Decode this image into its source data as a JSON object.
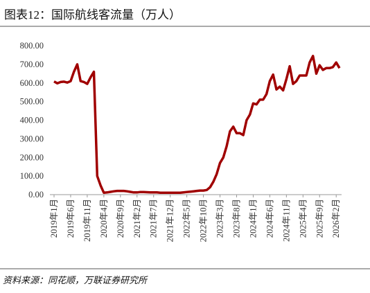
{
  "chart_data": {
    "type": "line",
    "title": "图表12：国际航线客流量（万人）",
    "source": "资料来源：同花顺，万联证券研究所",
    "color": "#a00000",
    "categories": [
      "2019年1月",
      null,
      null,
      null,
      null,
      "2019年6月",
      null,
      null,
      null,
      null,
      "2019年11月",
      null,
      null,
      null,
      null,
      "2020年4月",
      null,
      null,
      null,
      null,
      "2020年9月",
      null,
      null,
      null,
      null,
      "2021年2月",
      null,
      null,
      null,
      null,
      "2021年7月",
      null,
      null,
      null,
      null,
      "2021年12月",
      null,
      null,
      null,
      null,
      "2022年5月",
      null,
      null,
      null,
      null,
      "2022年10月",
      null,
      null,
      null,
      null,
      "2023年3月",
      null,
      null,
      null,
      null,
      "2023年8月",
      null,
      null,
      null,
      null,
      "2024年1月",
      null,
      null,
      null,
      null,
      "2024年6月",
      null,
      null,
      null,
      null,
      "2024年11月",
      null,
      null,
      null,
      null,
      "2025年4月",
      null,
      null,
      null,
      null,
      "2025年9月",
      null,
      null,
      null,
      null,
      "2026年2月",
      null
    ],
    "values": [
      608,
      598,
      605,
      607,
      602,
      610,
      660,
      700,
      610,
      605,
      595,
      630,
      660,
      100,
      50,
      10,
      12,
      15,
      18,
      20,
      20,
      20,
      18,
      15,
      12,
      12,
      14,
      14,
      13,
      12,
      12,
      12,
      10,
      10,
      10,
      10,
      10,
      10,
      10,
      12,
      14,
      16,
      18,
      20,
      22,
      22,
      25,
      40,
      70,
      110,
      170,
      200,
      260,
      340,
      365,
      330,
      330,
      320,
      400,
      430,
      490,
      485,
      510,
      510,
      540,
      610,
      645,
      565,
      580,
      560,
      620,
      690,
      595,
      610,
      640,
      640,
      640,
      710,
      745,
      650,
      695,
      670,
      680,
      680,
      685,
      710,
      680
    ],
    "ylim": [
      0,
      800
    ],
    "yticks": [
      {
        "value": 0,
        "label": "0.00"
      },
      {
        "value": 100,
        "label": "100.00"
      },
      {
        "value": 200,
        "label": "200.00"
      },
      {
        "value": 300,
        "label": "300.00"
      },
      {
        "value": 400,
        "label": "400.00"
      },
      {
        "value": 500,
        "label": "500.00"
      },
      {
        "value": 600,
        "label": "600.00"
      },
      {
        "value": 700,
        "label": "700.00"
      },
      {
        "value": 800,
        "label": "800.00"
      }
    ],
    "grid": false
  }
}
